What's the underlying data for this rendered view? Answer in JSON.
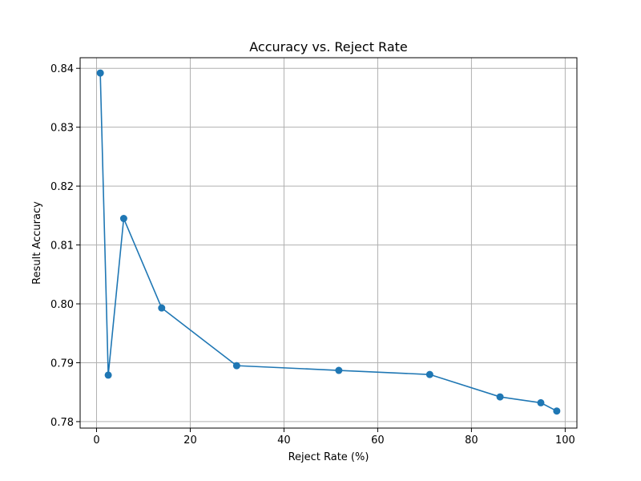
{
  "chart_data": {
    "type": "line",
    "title": "Accuracy vs. Reject Rate",
    "xlabel": "Reject Rate (%)",
    "ylabel": "Result Accuracy",
    "xlim": [
      -3.5,
      102.5
    ],
    "ylim": [
      0.7789,
      0.8418
    ],
    "xticks": [
      0,
      20,
      40,
      60,
      80,
      100
    ],
    "yticks": [
      0.78,
      0.79,
      0.8,
      0.81,
      0.82,
      0.83,
      0.84
    ],
    "ytick_labels": [
      "0.78",
      "0.79",
      "0.80",
      "0.81",
      "0.82",
      "0.83",
      "0.84"
    ],
    "grid": true,
    "series": [
      {
        "color": "#1f77b4",
        "marker": "circle",
        "x": [
          0.8,
          2.5,
          5.8,
          13.9,
          29.9,
          51.7,
          71.1,
          86.1,
          94.8,
          98.2
        ],
        "y": [
          0.8392,
          0.7879,
          0.8145,
          0.7993,
          0.7895,
          0.7887,
          0.788,
          0.7842,
          0.7832,
          0.7818
        ]
      }
    ]
  }
}
